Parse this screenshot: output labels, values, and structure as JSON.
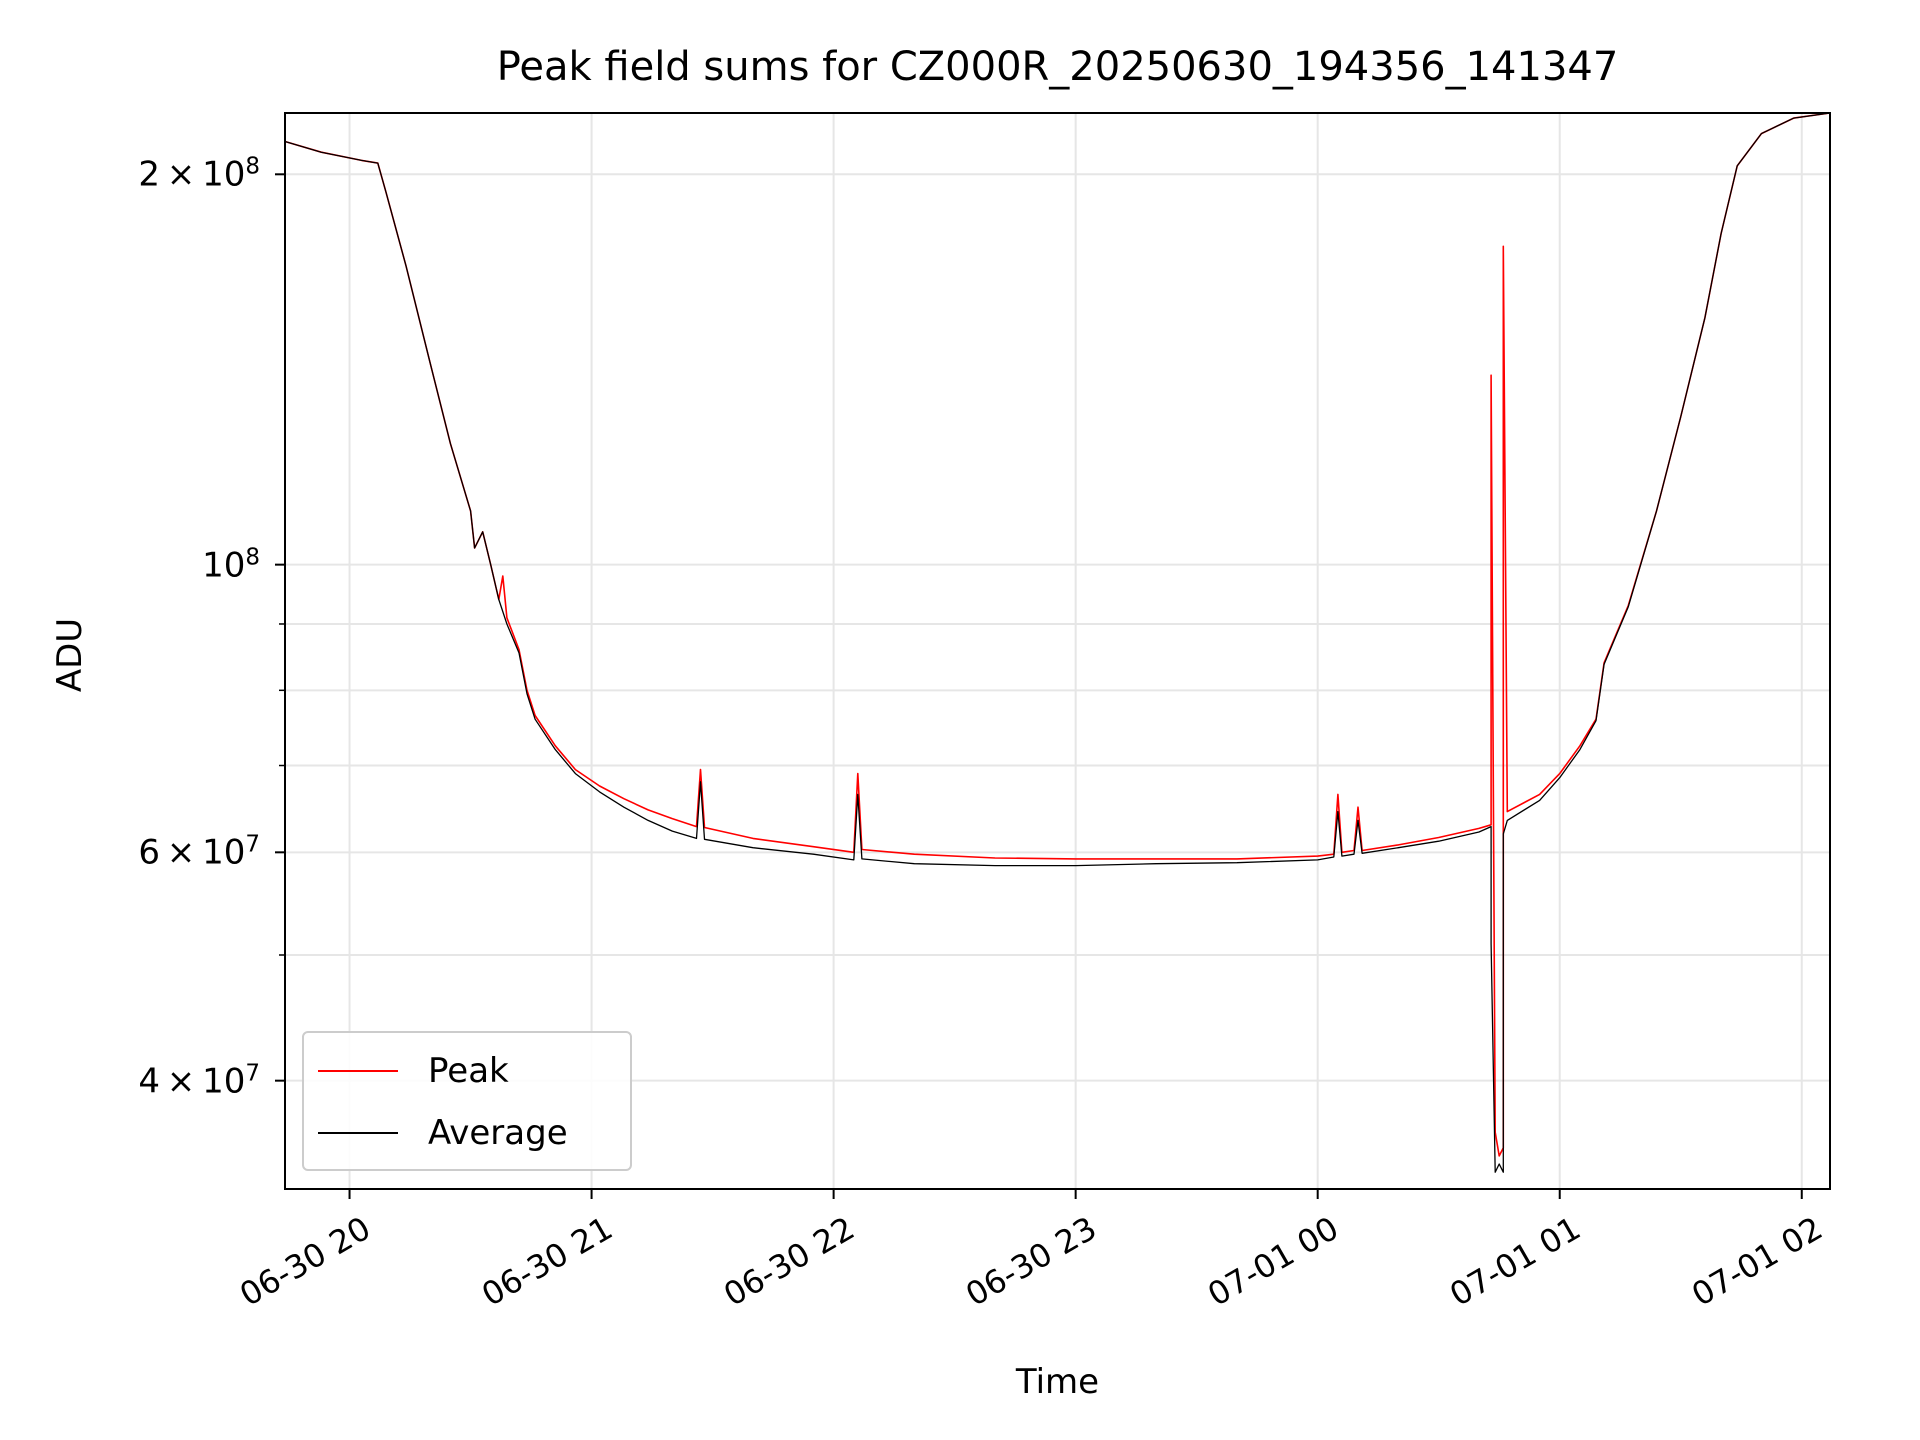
{
  "chart_data": {
    "type": "line",
    "title": "Peak field sums for CZ000R_20250630_194356_141347",
    "xlabel": "Time",
    "ylabel": "ADU",
    "yscale": "log",
    "xlim": [
      "2025-06-30 19:44",
      "2025-07-01 02:07"
    ],
    "ylim": [
      33000000,
      223000000
    ],
    "xticks": [
      "06-30 20",
      "06-30 21",
      "06-30 22",
      "06-30 23",
      "07-01 00",
      "07-01 01",
      "07-01 02"
    ],
    "yticks": [
      {
        "value": 40000000,
        "mantissa": "4",
        "exponent": "7"
      },
      {
        "value": 60000000,
        "mantissa": "6",
        "exponent": "7"
      },
      {
        "value": 100000000,
        "mantissa": "",
        "exponent": "8"
      },
      {
        "value": 200000000,
        "mantissa": "2",
        "exponent": "8"
      }
    ],
    "grid": true,
    "legend_position": "lower-left",
    "series": [
      {
        "name": "Peak",
        "color": "#ff0000",
        "points": [
          [
            "2025-06-30 19:44",
            212000000
          ],
          [
            "2025-06-30 19:53",
            208000000
          ],
          [
            "2025-06-30 20:03",
            205000000
          ],
          [
            "2025-06-30 20:07",
            204000000
          ],
          [
            "2025-06-30 20:09",
            194000000
          ],
          [
            "2025-06-30 20:14",
            170000000
          ],
          [
            "2025-06-30 20:20",
            143000000
          ],
          [
            "2025-06-30 20:25",
            124000000
          ],
          [
            "2025-06-30 20:30",
            110000000
          ],
          [
            "2025-06-30 20:31",
            103000000
          ],
          [
            "2025-06-30 20:33",
            106000000
          ],
          [
            "2025-06-30 20:35",
            100000000
          ],
          [
            "2025-06-30 20:37",
            94000000
          ],
          [
            "2025-06-30 20:38",
            98000000
          ],
          [
            "2025-06-30 20:39",
            91000000
          ],
          [
            "2025-06-30 20:42",
            86000000
          ],
          [
            "2025-06-30 20:44",
            80000000
          ],
          [
            "2025-06-30 20:46",
            76500000
          ],
          [
            "2025-06-30 20:51",
            72500000
          ],
          [
            "2025-06-30 20:56",
            69500000
          ],
          [
            "2025-06-30 21:02",
            67500000
          ],
          [
            "2025-06-30 21:08",
            66000000
          ],
          [
            "2025-06-30 21:14",
            64700000
          ],
          [
            "2025-06-30 21:20",
            63700000
          ],
          [
            "2025-06-30 21:26",
            62800000
          ],
          [
            "2025-06-30 21:27",
            69500000
          ],
          [
            "2025-06-30 21:28",
            62700000
          ],
          [
            "2025-06-30 21:40",
            61500000
          ],
          [
            "2025-06-30 21:55",
            60600000
          ],
          [
            "2025-06-30 22:05",
            60000000
          ],
          [
            "2025-06-30 22:06",
            69000000
          ],
          [
            "2025-06-30 22:07",
            60300000
          ],
          [
            "2025-06-30 22:20",
            59800000
          ],
          [
            "2025-06-30 22:40",
            59400000
          ],
          [
            "2025-06-30 23:00",
            59300000
          ],
          [
            "2025-06-30 23:20",
            59300000
          ],
          [
            "2025-06-30 23:40",
            59300000
          ],
          [
            "2025-07-01 00:00",
            59600000
          ],
          [
            "2025-07-01 00:04",
            59800000
          ],
          [
            "2025-07-01 00:05",
            66500000
          ],
          [
            "2025-07-01 00:06",
            60000000
          ],
          [
            "2025-07-01 00:09",
            60200000
          ],
          [
            "2025-07-01 00:10",
            65000000
          ],
          [
            "2025-07-01 00:11",
            60200000
          ],
          [
            "2025-07-01 00:20",
            60800000
          ],
          [
            "2025-07-01 00:30",
            61600000
          ],
          [
            "2025-07-01 00:40",
            62600000
          ],
          [
            "2025-07-01 00:43",
            63000000
          ],
          [
            "2025-07-01 00:43",
            140000000
          ],
          [
            "2025-07-01 00:44",
            36500000
          ],
          [
            "2025-07-01 00:45",
            35000000
          ],
          [
            "2025-07-01 00:46",
            35500000
          ],
          [
            "2025-07-01 00:46",
            176000000
          ],
          [
            "2025-07-01 00:47",
            64500000
          ],
          [
            "2025-07-01 00:55",
            66500000
          ],
          [
            "2025-07-01 01:00",
            69000000
          ],
          [
            "2025-07-01 01:05",
            72500000
          ],
          [
            "2025-07-01 01:09",
            76000000
          ],
          [
            "2025-07-01 01:11",
            84000000
          ],
          [
            "2025-07-01 01:17",
            93000000
          ],
          [
            "2025-07-01 01:24",
            110000000
          ],
          [
            "2025-07-01 01:30",
            130000000
          ],
          [
            "2025-07-01 01:36",
            155000000
          ],
          [
            "2025-07-01 01:40",
            180000000
          ],
          [
            "2025-07-01 01:44",
            203000000
          ],
          [
            "2025-07-01 01:50",
            215000000
          ],
          [
            "2025-07-01 01:58",
            221000000
          ],
          [
            "2025-07-01 02:07",
            223000000
          ]
        ]
      },
      {
        "name": "Average",
        "color": "#000000",
        "points": [
          [
            "2025-06-30 19:44",
            212000000
          ],
          [
            "2025-06-30 19:53",
            208000000
          ],
          [
            "2025-06-30 20:03",
            205000000
          ],
          [
            "2025-06-30 20:07",
            204000000
          ],
          [
            "2025-06-30 20:09",
            194000000
          ],
          [
            "2025-06-30 20:14",
            170000000
          ],
          [
            "2025-06-30 20:20",
            143000000
          ],
          [
            "2025-06-30 20:25",
            124000000
          ],
          [
            "2025-06-30 20:30",
            110000000
          ],
          [
            "2025-06-30 20:31",
            103000000
          ],
          [
            "2025-06-30 20:33",
            106000000
          ],
          [
            "2025-06-30 20:35",
            100000000
          ],
          [
            "2025-06-30 20:37",
            94000000
          ],
          [
            "2025-06-30 20:39",
            90000000
          ],
          [
            "2025-06-30 20:42",
            85500000
          ],
          [
            "2025-06-30 20:44",
            79500000
          ],
          [
            "2025-06-30 20:46",
            76000000
          ],
          [
            "2025-06-30 20:51",
            72000000
          ],
          [
            "2025-06-30 20:56",
            69000000
          ],
          [
            "2025-06-30 21:02",
            66800000
          ],
          [
            "2025-06-30 21:08",
            65000000
          ],
          [
            "2025-06-30 21:14",
            63500000
          ],
          [
            "2025-06-30 21:20",
            62300000
          ],
          [
            "2025-06-30 21:26",
            61500000
          ],
          [
            "2025-06-30 21:27",
            68000000
          ],
          [
            "2025-06-30 21:28",
            61400000
          ],
          [
            "2025-06-30 21:40",
            60500000
          ],
          [
            "2025-06-30 21:55",
            59800000
          ],
          [
            "2025-06-30 22:05",
            59200000
          ],
          [
            "2025-06-30 22:06",
            66500000
          ],
          [
            "2025-06-30 22:07",
            59300000
          ],
          [
            "2025-06-30 22:20",
            58800000
          ],
          [
            "2025-06-30 22:40",
            58600000
          ],
          [
            "2025-06-30 23:00",
            58600000
          ],
          [
            "2025-06-30 23:20",
            58800000
          ],
          [
            "2025-06-30 23:40",
            58900000
          ],
          [
            "2025-07-01 00:00",
            59200000
          ],
          [
            "2025-07-01 00:04",
            59500000
          ],
          [
            "2025-07-01 00:05",
            64500000
          ],
          [
            "2025-07-01 00:06",
            59600000
          ],
          [
            "2025-07-01 00:09",
            59800000
          ],
          [
            "2025-07-01 00:10",
            63500000
          ],
          [
            "2025-07-01 00:11",
            59900000
          ],
          [
            "2025-07-01 00:20",
            60500000
          ],
          [
            "2025-07-01 00:30",
            61200000
          ],
          [
            "2025-07-01 00:40",
            62200000
          ],
          [
            "2025-07-01 00:43",
            62800000
          ],
          [
            "2025-07-01 00:43",
            51000000
          ],
          [
            "2025-07-01 00:44",
            34000000
          ],
          [
            "2025-07-01 00:45",
            34500000
          ],
          [
            "2025-07-01 00:46",
            34000000
          ],
          [
            "2025-07-01 00:46",
            62000000
          ],
          [
            "2025-07-01 00:47",
            63500000
          ],
          [
            "2025-07-01 00:55",
            65800000
          ],
          [
            "2025-07-01 01:00",
            68500000
          ],
          [
            "2025-07-01 01:05",
            72000000
          ],
          [
            "2025-07-01 01:09",
            75800000
          ],
          [
            "2025-07-01 01:11",
            83800000
          ],
          [
            "2025-07-01 01:17",
            92800000
          ],
          [
            "2025-07-01 01:24",
            110000000
          ],
          [
            "2025-07-01 01:30",
            130000000
          ],
          [
            "2025-07-01 01:36",
            155000000
          ],
          [
            "2025-07-01 01:40",
            180000000
          ],
          [
            "2025-07-01 01:44",
            203000000
          ],
          [
            "2025-07-01 01:50",
            215000000
          ],
          [
            "2025-07-01 01:58",
            221000000
          ],
          [
            "2025-07-01 02:07",
            223000000
          ]
        ]
      }
    ]
  }
}
